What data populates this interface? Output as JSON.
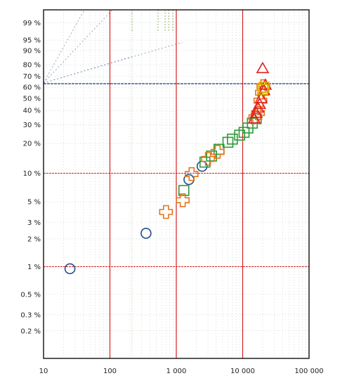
{
  "chart_data": {
    "type": "scatter",
    "title": "",
    "xlabel": "",
    "ylabel": "",
    "x_scale": "log",
    "y_scale": "probability",
    "xlim": [
      10,
      100000
    ],
    "ylim_percent": [
      0.1,
      99.9
    ],
    "x_tick_labels": [
      {
        "value": 10,
        "label": "10"
      },
      {
        "value": 100,
        "label": "100"
      },
      {
        "value": 1000,
        "label": "1 000"
      },
      {
        "value": 10000,
        "label": "10 000"
      },
      {
        "value": 100000,
        "label": "100 000"
      }
    ],
    "y_tick_labels": [
      {
        "value": 0.2,
        "label": "0.2 %"
      },
      {
        "value": 0.3,
        "label": "0.3 %"
      },
      {
        "value": 0.5,
        "label": "0.5 %"
      },
      {
        "value": 1,
        "label": "1 %"
      },
      {
        "value": 2,
        "label": "2 %"
      },
      {
        "value": 3,
        "label": "3 %"
      },
      {
        "value": 5,
        "label": "5 %"
      },
      {
        "value": 10,
        "label": "10 %"
      },
      {
        "value": 20,
        "label": "20 %"
      },
      {
        "value": 30,
        "label": "30 %"
      },
      {
        "value": 40,
        "label": "40 %"
      },
      {
        "value": 50,
        "label": "50 %"
      },
      {
        "value": 60,
        "label": "60 %"
      },
      {
        "value": 70,
        "label": "70 %"
      },
      {
        "value": 80,
        "label": "80 %"
      },
      {
        "value": 90,
        "label": "90 %"
      },
      {
        "value": 95,
        "label": "95 %"
      },
      {
        "value": 99,
        "label": "99 %"
      }
    ],
    "reference_lines": {
      "vertical": [
        100,
        1000,
        10000
      ],
      "horizontal_percent": [
        1,
        10
      ],
      "horizontal_blue_percent": 63.2
    },
    "grid": true,
    "legend": "none",
    "series": [
      {
        "marker": "circle",
        "color": "#1f4e8c",
        "points": [
          {
            "x": 25,
            "y": 0.95
          },
          {
            "x": 350,
            "y": 2.3
          },
          {
            "x": 1550,
            "y": 8.6
          },
          {
            "x": 2450,
            "y": 11.8
          }
        ]
      },
      {
        "marker": "square",
        "color": "#2e9a3a",
        "points": [
          {
            "x": 1300,
            "y": 6.6
          },
          {
            "x": 2700,
            "y": 13.0
          },
          {
            "x": 3400,
            "y": 15.0
          },
          {
            "x": 4400,
            "y": 17.5
          },
          {
            "x": 6000,
            "y": 20.5
          },
          {
            "x": 7000,
            "y": 22.0
          },
          {
            "x": 9000,
            "y": 24.0
          },
          {
            "x": 10500,
            "y": 25.5
          },
          {
            "x": 12000,
            "y": 28.0
          },
          {
            "x": 14000,
            "y": 31.0
          },
          {
            "x": 16000,
            "y": 34.0
          }
        ]
      },
      {
        "marker": "cross",
        "color": "#e8741a",
        "points": [
          {
            "x": 700,
            "y": 3.9
          },
          {
            "x": 1250,
            "y": 5.2
          },
          {
            "x": 1700,
            "y": 9.8
          },
          {
            "x": 3000,
            "y": 14.0
          },
          {
            "x": 4200,
            "y": 16.5
          },
          {
            "x": 15500,
            "y": 35.0
          },
          {
            "x": 17000,
            "y": 38.0
          },
          {
            "x": 18500,
            "y": 48.0
          },
          {
            "x": 19500,
            "y": 55.0
          },
          {
            "x": 20500,
            "y": 61.0
          }
        ]
      },
      {
        "marker": "triangle",
        "color": "#e02020",
        "points": [
          {
            "x": 15000,
            "y": 34.0
          },
          {
            "x": 16000,
            "y": 38.0
          },
          {
            "x": 17000,
            "y": 42.0
          },
          {
            "x": 18000,
            "y": 45.0
          },
          {
            "x": 19000,
            "y": 50.0
          },
          {
            "x": 21000,
            "y": 57.0
          },
          {
            "x": 22000,
            "y": 62.0
          },
          {
            "x": 20000,
            "y": 77.0
          }
        ]
      },
      {
        "marker": "square",
        "color": "#d8b400",
        "points": [
          {
            "x": 20000,
            "y": 58.0
          },
          {
            "x": 21000,
            "y": 60.0
          }
        ]
      }
    ]
  }
}
